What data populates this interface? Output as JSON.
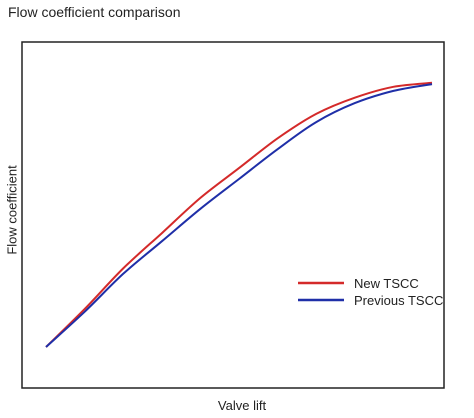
{
  "chart_data": {
    "type": "line",
    "title": "Flow coefficient comparison",
    "xlabel": "Valve lift",
    "ylabel": "Flow coefficient",
    "xlim": [
      0,
      1
    ],
    "ylim": [
      0,
      1
    ],
    "grid": false,
    "legend_position": "lower-right",
    "series": [
      {
        "name": "New TSCC",
        "color": "#d42a2a",
        "x": [
          0.0,
          0.1,
          0.2,
          0.3,
          0.4,
          0.5,
          0.6,
          0.7,
          0.8,
          0.9,
          1.0
        ],
        "y": [
          0.0,
          0.14,
          0.29,
          0.42,
          0.55,
          0.66,
          0.77,
          0.86,
          0.92,
          0.96,
          0.975
        ]
      },
      {
        "name": "Previous TSCC",
        "color": "#1f2fa8",
        "x": [
          0.0,
          0.1,
          0.2,
          0.3,
          0.4,
          0.5,
          0.6,
          0.7,
          0.8,
          0.9,
          1.0
        ],
        "y": [
          0.0,
          0.13,
          0.27,
          0.39,
          0.51,
          0.62,
          0.73,
          0.83,
          0.9,
          0.945,
          0.97
        ]
      }
    ]
  }
}
